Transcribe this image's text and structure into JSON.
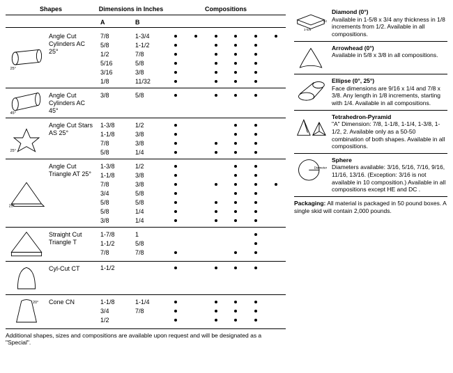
{
  "headers": {
    "shapes": "Shapes",
    "dimensions": "Dimensions\nin Inches",
    "compositions": "Compositions",
    "colA": "A",
    "colB": "B"
  },
  "comp_columns": 6,
  "shapes": [
    {
      "name": "Angle Cut\nCylinders\nAC 25°",
      "rows": [
        {
          "a": "7/8",
          "b": "1-3/4",
          "dots": [
            1,
            1,
            1,
            1,
            1,
            1
          ]
        },
        {
          "a": "5/8",
          "b": "1-1/2",
          "dots": [
            1,
            0,
            1,
            1,
            1,
            0
          ]
        },
        {
          "a": "1/2",
          "b": "7/8",
          "dots": [
            1,
            0,
            1,
            1,
            1,
            0
          ]
        },
        {
          "a": "5/16",
          "b": "5/8",
          "dots": [
            1,
            0,
            1,
            1,
            1,
            0
          ]
        },
        {
          "a": "3/16",
          "b": "3/8",
          "dots": [
            1,
            0,
            1,
            1,
            1,
            0
          ]
        },
        {
          "a": "1/8",
          "b": "11/32",
          "dots": [
            1,
            0,
            1,
            1,
            1,
            0
          ]
        }
      ]
    },
    {
      "name": "Angle Cut\nCylinders AC\n45°",
      "rows": [
        {
          "a": "3/8",
          "b": "5/8",
          "dots": [
            1,
            0,
            1,
            1,
            1,
            0
          ]
        }
      ]
    },
    {
      "name": "Angle Cut\nStars\nAS 25°",
      "rows": [
        {
          "a": "1-3/8",
          "b": "1/2",
          "dots": [
            1,
            0,
            0,
            1,
            1,
            0
          ]
        },
        {
          "a": "1-1/8",
          "b": "3/8",
          "dots": [
            1,
            0,
            0,
            1,
            1,
            0
          ]
        },
        {
          "a": "7/8",
          "b": "3/8",
          "dots": [
            1,
            0,
            1,
            1,
            1,
            0
          ]
        },
        {
          "a": "5/8",
          "b": "1/4",
          "dots": [
            1,
            0,
            1,
            1,
            1,
            0
          ]
        }
      ]
    },
    {
      "name": "Angle Cut\nTriangle\nAT 25°",
      "rows": [
        {
          "a": "1-3/8",
          "b": "1/2",
          "dots": [
            1,
            0,
            0,
            1,
            1,
            0
          ]
        },
        {
          "a": "1-1/8",
          "b": "3/8",
          "dots": [
            1,
            0,
            0,
            1,
            1,
            0
          ]
        },
        {
          "a": "7/8",
          "b": "3/8",
          "dots": [
            1,
            0,
            1,
            1,
            1,
            1
          ]
        },
        {
          "a": "3/4",
          "b": "5/8",
          "dots": [
            1,
            0,
            0,
            1,
            1,
            0
          ]
        },
        {
          "a": "5/8",
          "b": "5/8",
          "dots": [
            1,
            0,
            1,
            1,
            1,
            0
          ]
        },
        {
          "a": "5/8",
          "b": "1/4",
          "dots": [
            1,
            0,
            1,
            1,
            1,
            0
          ]
        },
        {
          "a": "3/8",
          "b": "1/4",
          "dots": [
            1,
            0,
            1,
            1,
            1,
            0
          ]
        }
      ]
    },
    {
      "name": "Straight Cut\nTriangle\nT",
      "rows": [
        {
          "a": "1-7/8",
          "b": "1",
          "dots": [
            0,
            0,
            0,
            0,
            1,
            0
          ]
        },
        {
          "a": "1-1/2",
          "b": "5/8",
          "dots": [
            0,
            0,
            0,
            0,
            1,
            0
          ]
        },
        {
          "a": "7/8",
          "b": "7/8",
          "dots": [
            1,
            0,
            0,
            1,
            1,
            0
          ]
        }
      ]
    },
    {
      "name": "Cyl-Cut\nCT",
      "rows": [
        {
          "a": "1-1/2",
          "b": "",
          "dots": [
            1,
            0,
            1,
            1,
            1,
            0
          ]
        }
      ]
    },
    {
      "name": "Cone\nCN",
      "rows": [
        {
          "a": "1-1/8",
          "b": "1-1/4",
          "dots": [
            1,
            0,
            1,
            1,
            1,
            0
          ]
        },
        {
          "a": "3/4",
          "b": "7/8",
          "dots": [
            1,
            0,
            1,
            1,
            1,
            0
          ]
        },
        {
          "a": "1/2",
          "b": "",
          "dots": [
            1,
            0,
            1,
            1,
            1,
            0
          ]
        }
      ]
    }
  ],
  "footnote": "Additional shapes, sizes and compositions are available upon request and will be designated as a \"Special\".",
  "right": [
    {
      "title": "Diamond (0°)",
      "body": "Available in 1-5/8 x 3/4 any thickness in 1/8 increments from 1/2. Available in all compositions."
    },
    {
      "title": "Arrowhead (0°)",
      "body": "Available in 5/8 x 3/8 in all compositions."
    },
    {
      "title": "Ellipse (0°, 25°)",
      "body": "Face dimensions are 9/16 x 1/4 and 7/8 x 3/8. Any length in 1/8 increments, starting with 1/4. Available in all compositions."
    },
    {
      "title": "Tetrahedron-Pyramid",
      "body": "\"A\" Dimension: 7/8, 1-1/8, 1-1/4, 1-3/8, 1-1/2, 2. Available only as a 50-50 combination of both shapes. Available in all compositions."
    },
    {
      "title": "Sphere",
      "body": "Diameters available: 3/16, 5/16, 7/16, 9/16, 11/16, 13/16. (Exception: 3/16 is not available in 10 composition.) Available in all compositions except HE and DC ."
    }
  ],
  "packaging_label": "Packaging:",
  "packaging_body": " All material is packaged in 50 pound boxes. A single skid will contain 2,000 pounds."
}
